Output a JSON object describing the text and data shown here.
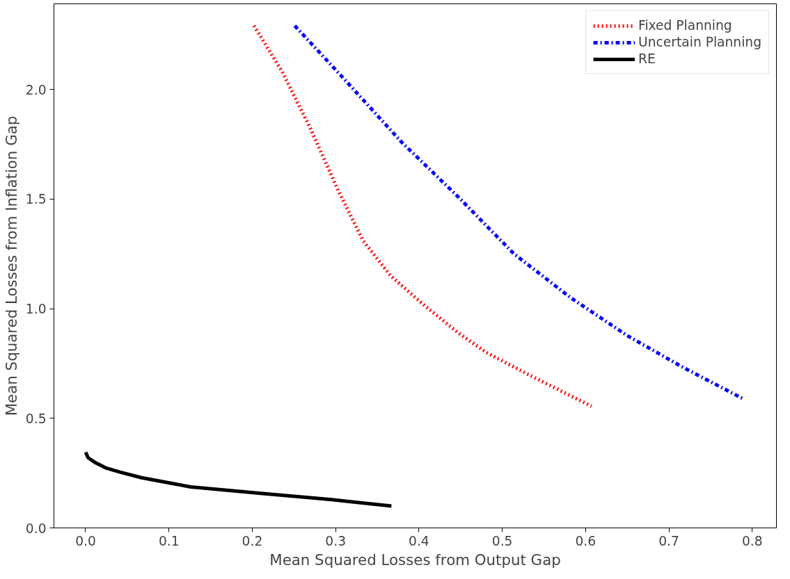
{
  "chart_data": {
    "type": "line",
    "xlabel": "Mean Squared Losses from Output Gap",
    "ylabel": "Mean Squared Losses from Inflation Gap",
    "xlim": [
      -0.038,
      0.829
    ],
    "ylim": [
      0,
      2.39
    ],
    "xticks": [
      {
        "value": 0,
        "label": "0.0"
      },
      0.1,
      0.2,
      0.3,
      0.4,
      0.5,
      0.6,
      0.7,
      0.8
    ],
    "yticks": [
      {
        "value": 0,
        "label": "0.0"
      },
      0.5,
      {
        "value": 1,
        "label": "1.0"
      },
      1.5,
      {
        "value": 2,
        "label": "2.0"
      }
    ],
    "grid": false,
    "legend": "top right",
    "marker": "none",
    "series": [
      {
        "name": "Fixed Planning",
        "color": "#ff0000",
        "line_style": "dotted",
        "x": [
          0.202,
          0.236,
          0.27,
          0.303,
          0.333,
          0.366,
          0.405,
          0.447,
          0.481,
          0.531,
          0.607
        ],
        "values": [
          2.29,
          2.08,
          1.82,
          1.54,
          1.31,
          1.15,
          1.02,
          0.89,
          0.8,
          0.7,
          0.555
        ]
      },
      {
        "name": "Uncertain Planning",
        "color": "#0000ff",
        "line_style": "dashdot",
        "x": [
          0.251,
          0.312,
          0.379,
          0.447,
          0.514,
          0.582,
          0.65,
          0.717,
          0.79
        ],
        "values": [
          2.29,
          2.04,
          1.76,
          1.51,
          1.25,
          1.05,
          0.877,
          0.732,
          0.587
        ]
      },
      {
        "name": "RE",
        "color": "#000000",
        "line_style": "solid",
        "x": [
          0.0,
          0.003,
          0.012,
          0.024,
          0.041,
          0.067,
          0.126,
          0.21,
          0.295,
          0.367
        ],
        "values": [
          0.345,
          0.32,
          0.297,
          0.274,
          0.255,
          0.229,
          0.187,
          0.158,
          0.129,
          0.1
        ]
      }
    ]
  }
}
